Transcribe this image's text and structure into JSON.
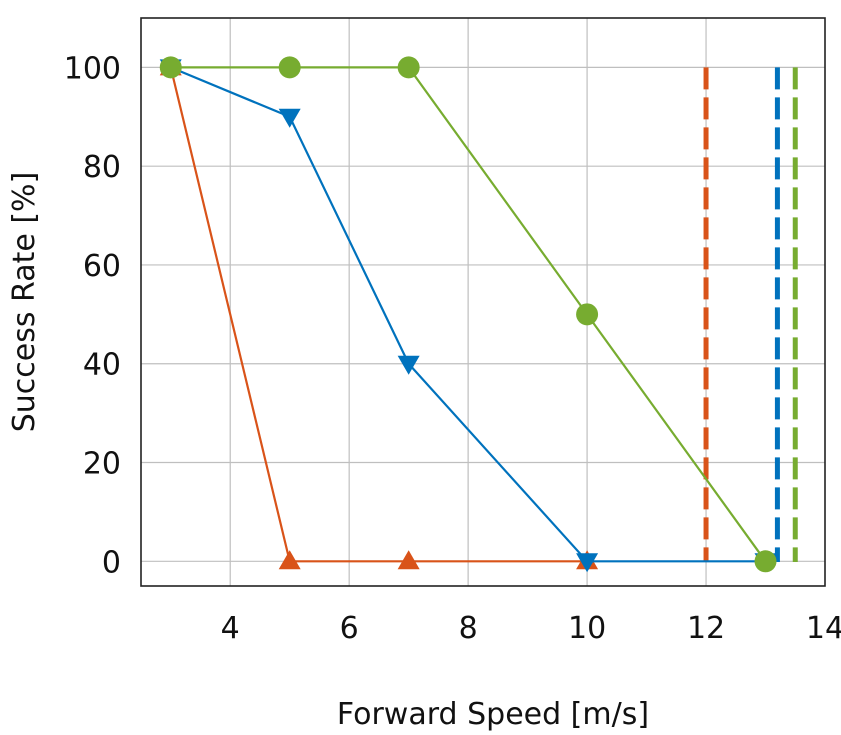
{
  "chart_data": {
    "type": "line",
    "title": "",
    "xlabel": "Forward Speed [m/s]",
    "ylabel": "Success Rate [%]",
    "xlim": [
      2.5,
      14
    ],
    "ylim": [
      -5,
      110
    ],
    "xticks": [
      4,
      6,
      8,
      10,
      12,
      14
    ],
    "yticks": [
      0,
      20,
      40,
      60,
      80,
      100
    ],
    "grid": true,
    "legend": "none",
    "series": [
      {
        "color": "#D95319",
        "marker": "triangle-up",
        "x": [
          3,
          5,
          7,
          10
        ],
        "y": [
          100,
          0,
          0,
          0
        ]
      },
      {
        "color": "#0072BD",
        "marker": "triangle-down",
        "x": [
          3,
          5,
          7,
          10,
          13
        ],
        "y": [
          100,
          90,
          40,
          0,
          0
        ]
      },
      {
        "color": "#77AC30",
        "marker": "circle",
        "x": [
          3,
          5,
          7,
          10,
          13
        ],
        "y": [
          100,
          100,
          100,
          50,
          0
        ]
      }
    ],
    "vlines": [
      {
        "x": 12.0,
        "color": "#D95319",
        "style": "dashed",
        "y_top": 100
      },
      {
        "x": 13.2,
        "color": "#0072BD",
        "style": "dashed",
        "y_top": 100
      },
      {
        "x": 13.5,
        "color": "#77AC30",
        "style": "dashed",
        "y_top": 100
      }
    ]
  }
}
